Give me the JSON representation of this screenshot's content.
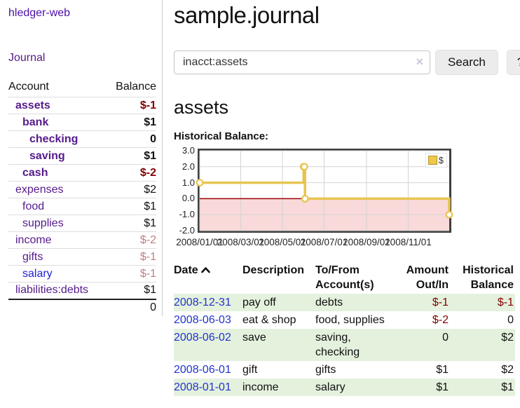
{
  "colors": {
    "link_purple": "#551a8b",
    "link_blue": "#2222dd",
    "negative_strong": "#800000",
    "negative_dim": "#bf7f7f",
    "row_green": "#e4f1dd",
    "chart_gold": "#e8c44f",
    "chart_negative_region": "#f9d9d9",
    "chart_zero_line": "#990000"
  },
  "app_title": "hledger-web",
  "sidebar": {
    "journal_link": "Journal",
    "account_header": "Account",
    "balance_header": "Balance",
    "accounts": [
      {
        "name": "assets",
        "balance": "$-1"
      },
      {
        "name": "bank",
        "balance": "$1"
      },
      {
        "name": "checking",
        "balance": "0"
      },
      {
        "name": "saving",
        "balance": "$1"
      },
      {
        "name": "cash",
        "balance": "$-2"
      },
      {
        "name": "expenses",
        "balance": "$2"
      },
      {
        "name": "food",
        "balance": "$1"
      },
      {
        "name": "supplies",
        "balance": "$1"
      },
      {
        "name": "income",
        "balance": "$-2"
      },
      {
        "name": "gifts",
        "balance": "$-1"
      },
      {
        "name": "salary",
        "balance": "$-1"
      },
      {
        "name": "liabilities:debts",
        "balance": "$1"
      }
    ],
    "total": "0"
  },
  "main": {
    "title": "sample.journal",
    "search": {
      "value": "inacct:assets",
      "clear_icon": "×",
      "search_button": "Search",
      "help_button": "?"
    },
    "account_heading": "assets",
    "chart_label": "Historical Balance:",
    "register": {
      "headers": {
        "date": "Date",
        "description": "Description",
        "tofrom": "To/From Account(s)",
        "amount": "Amount Out/In",
        "balance": "Historical Balance"
      },
      "rows": [
        {
          "date": "2008-12-31",
          "description": "pay off",
          "tofrom": "debts",
          "amount": "$-1",
          "balance": "$-1"
        },
        {
          "date": "2008-06-03",
          "description": "eat & shop",
          "tofrom": "food, supplies",
          "amount": "$-2",
          "balance": "0"
        },
        {
          "date": "2008-06-02",
          "description": "save",
          "tofrom": "saving, checking",
          "amount": "0",
          "balance": "$2"
        },
        {
          "date": "2008-06-01",
          "description": "gift",
          "tofrom": "gifts",
          "amount": "$1",
          "balance": "$2"
        },
        {
          "date": "2008-01-01",
          "description": "income",
          "tofrom": "salary",
          "amount": "$1",
          "balance": "$1"
        }
      ]
    }
  },
  "chart_data": {
    "type": "line",
    "step": true,
    "title": "Historical Balance:",
    "legend": [
      {
        "label": "$",
        "color": "#ecc94b"
      }
    ],
    "legend_position": "top-right",
    "grid": true,
    "x": [
      "2008-01-01",
      "2008-06-01",
      "2008-06-02",
      "2008-06-03",
      "2008-12-31"
    ],
    "series": [
      {
        "name": "$",
        "values": [
          1.0,
          2.0,
          2.0,
          0.0,
          -1.0
        ]
      }
    ],
    "x_range": [
      "2008-01-01",
      "2008-12-31"
    ],
    "x_ticks": [
      "2008/01/01",
      "2008/03/01",
      "2008/05/01",
      "2008/07/01",
      "2008/09/01",
      "2008/11/01"
    ],
    "y_ticks": [
      3.0,
      2.0,
      1.0,
      0.0,
      -1.0,
      -2.0
    ],
    "ylim": [
      -2.0,
      3.0
    ]
  }
}
